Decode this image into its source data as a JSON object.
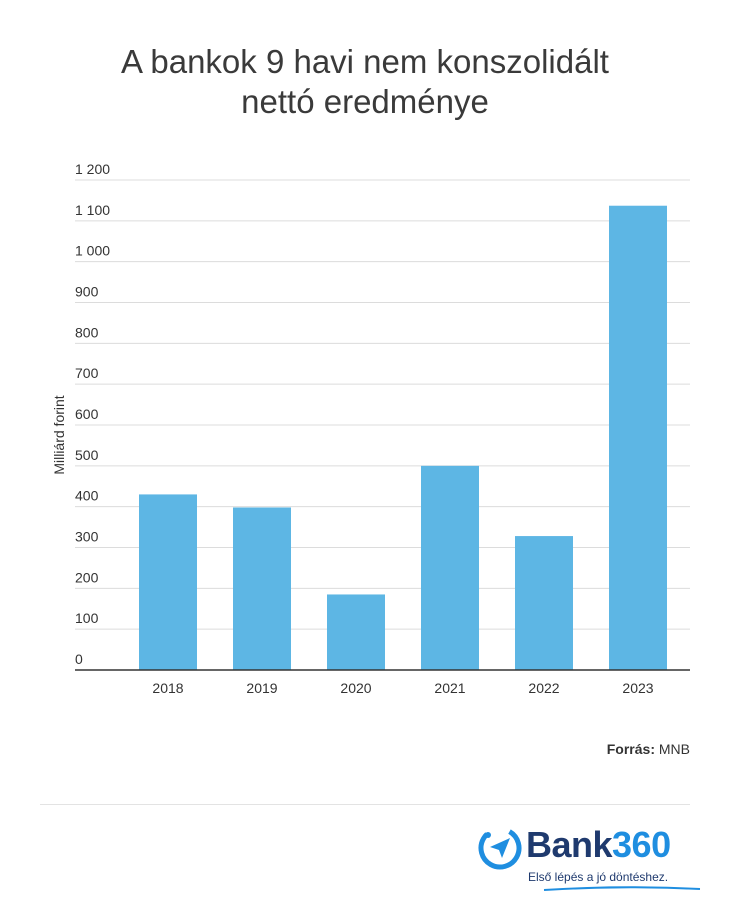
{
  "chart_data": {
    "type": "bar",
    "title_lines": [
      "A bankok 9 havi nem konszolidált",
      "nettó eredménye"
    ],
    "ylabel": "Milliárd forint",
    "xlabel": "",
    "categories": [
      "2018",
      "2019",
      "2020",
      "2021",
      "2022",
      "2023"
    ],
    "values": [
      430,
      398,
      185,
      500,
      328,
      1137
    ],
    "ylim": [
      0,
      1200
    ],
    "yticks": [
      0,
      100,
      200,
      300,
      400,
      500,
      600,
      700,
      800,
      900,
      1000,
      1100,
      1200
    ],
    "ytick_labels": [
      "0",
      "100",
      "200",
      "300",
      "400",
      "500",
      "600",
      "700",
      "800",
      "900",
      "1 000",
      "1 100",
      "1 200"
    ],
    "grid": true,
    "bar_color": "#5db6e4"
  },
  "source": {
    "label": "Forrás:",
    "value": "MNB"
  },
  "logo": {
    "brand_word": "Bank",
    "brand_num": "360",
    "tagline": "Első lépés a jó döntéshez.",
    "icon": "paper-plane-icon",
    "color": "#1f8ee0"
  }
}
